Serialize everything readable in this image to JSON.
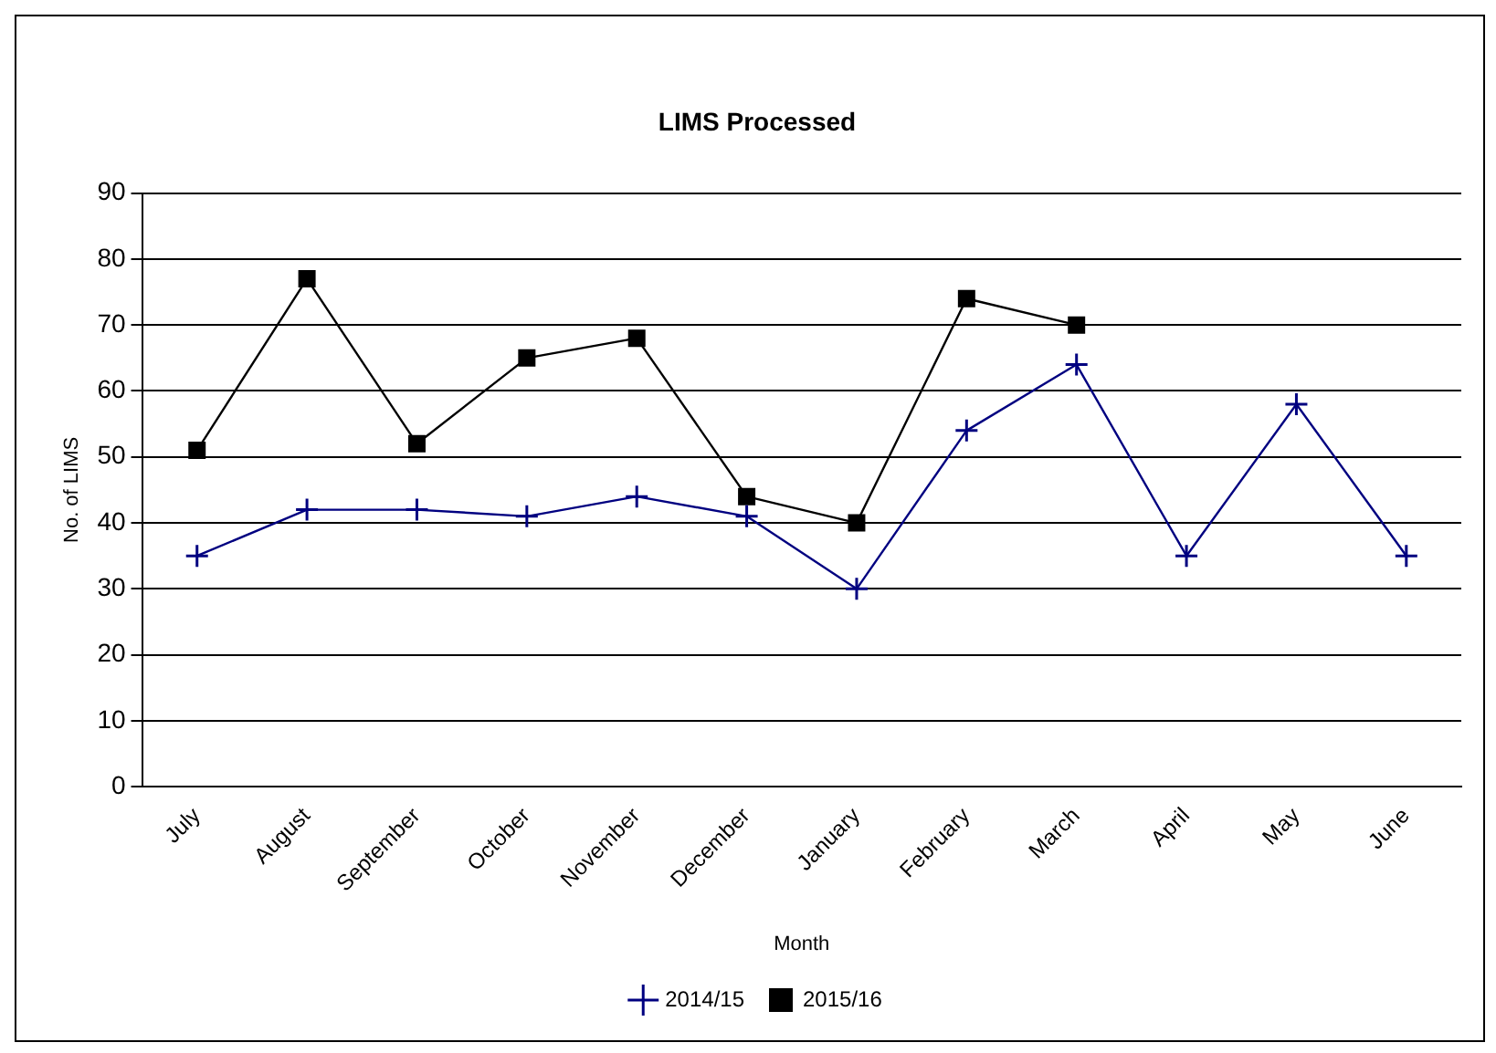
{
  "chart_data": {
    "type": "line",
    "title": "LIMS Processed",
    "xlabel": "Month",
    "ylabel": "No. of LIMS",
    "categories": [
      "July",
      "August",
      "September",
      "October",
      "November",
      "December",
      "January",
      "February",
      "March",
      "April",
      "May",
      "June"
    ],
    "series": [
      {
        "name": "2014/15",
        "color": "#000080",
        "marker": "cross",
        "values": [
          35,
          42,
          42,
          41,
          44,
          41,
          30,
          54,
          64,
          35,
          58,
          35
        ]
      },
      {
        "name": "2015/16",
        "color": "#000000",
        "marker": "square",
        "values": [
          51,
          77,
          52,
          65,
          68,
          44,
          40,
          74,
          70,
          null,
          null,
          null
        ]
      }
    ],
    "ylim": [
      0,
      90
    ],
    "yticks": [
      0,
      10,
      20,
      30,
      40,
      50,
      60,
      70,
      80,
      90
    ],
    "grid": "y",
    "legend": "bottom",
    "line_style": "solid"
  }
}
